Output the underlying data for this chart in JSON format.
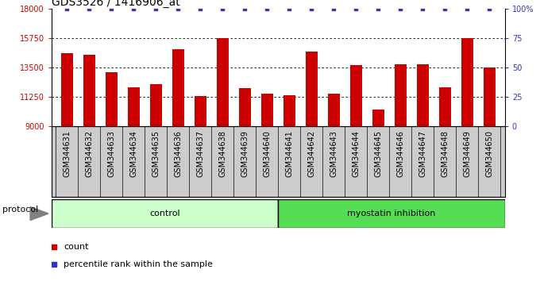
{
  "title": "GDS3526 / 1416906_at",
  "samples": [
    "GSM344631",
    "GSM344632",
    "GSM344633",
    "GSM344634",
    "GSM344635",
    "GSM344636",
    "GSM344637",
    "GSM344638",
    "GSM344639",
    "GSM344640",
    "GSM344641",
    "GSM344642",
    "GSM344643",
    "GSM344644",
    "GSM344645",
    "GSM344646",
    "GSM344647",
    "GSM344648",
    "GSM344649",
    "GSM344650"
  ],
  "counts": [
    14600,
    14450,
    13150,
    12000,
    12200,
    14900,
    11300,
    15750,
    11900,
    11500,
    11400,
    14700,
    11500,
    13700,
    10300,
    13750,
    13750,
    12000,
    15750,
    13500
  ],
  "control_count": 10,
  "myostatin_count": 10,
  "ylim_left": [
    9000,
    18000
  ],
  "yticks_left": [
    9000,
    11250,
    13500,
    15750,
    18000
  ],
  "ylim_right": [
    0,
    100
  ],
  "yticks_right": [
    0,
    25,
    50,
    75,
    100
  ],
  "bar_color": "#cc0000",
  "dot_color": "#3333cc",
  "control_color": "#ccffcc",
  "myostatin_color": "#55dd55",
  "xtick_bg_color": "#cccccc",
  "title_fontsize": 10,
  "tick_fontsize": 7,
  "label_fontsize": 8,
  "protocol_label_fontsize": 8,
  "legend_fontsize": 8
}
